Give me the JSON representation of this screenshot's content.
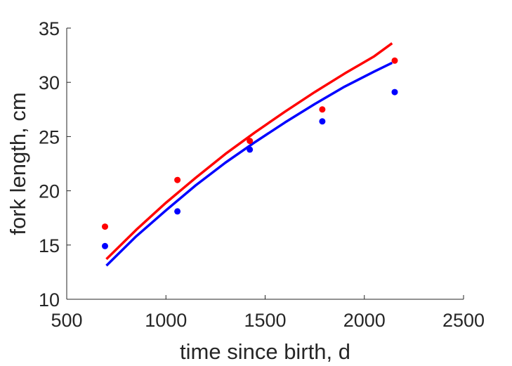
{
  "chart_data": {
    "type": "scatter",
    "title": "",
    "xlabel": "time since birth, d",
    "ylabel": "fork length, cm",
    "xlim": [
      500,
      2500
    ],
    "ylim": [
      10,
      35
    ],
    "xticks": [
      500,
      1000,
      1500,
      2000,
      2500
    ],
    "yticks": [
      10,
      15,
      20,
      25,
      30,
      35
    ],
    "grid": false,
    "legend": "none",
    "series": [
      {
        "color": "#ff0000",
        "points": {
          "x": [
            693,
            1058,
            1423,
            1788,
            2153
          ],
          "y": [
            16.7,
            21.0,
            24.6,
            27.5,
            32.0
          ]
        },
        "curve": {
          "x": [
            700,
            850,
            1000,
            1150,
            1300,
            1450,
            1600,
            1750,
            1900,
            2050,
            2140
          ],
          "y": [
            13.7,
            16.4,
            18.9,
            21.2,
            23.4,
            25.4,
            27.3,
            29.1,
            30.8,
            32.4,
            33.6
          ]
        }
      },
      {
        "color": "#0000ff",
        "points": {
          "x": [
            693,
            1058,
            1423,
            1788,
            2153
          ],
          "y": [
            14.9,
            18.1,
            23.8,
            26.4,
            29.1
          ]
        },
        "curve": {
          "x": [
            700,
            850,
            1000,
            1150,
            1300,
            1450,
            1600,
            1750,
            1900,
            2050,
            2140
          ],
          "y": [
            13.1,
            15.8,
            18.2,
            20.5,
            22.6,
            24.5,
            26.3,
            28.0,
            29.6,
            31.0,
            31.8
          ]
        }
      }
    ]
  }
}
